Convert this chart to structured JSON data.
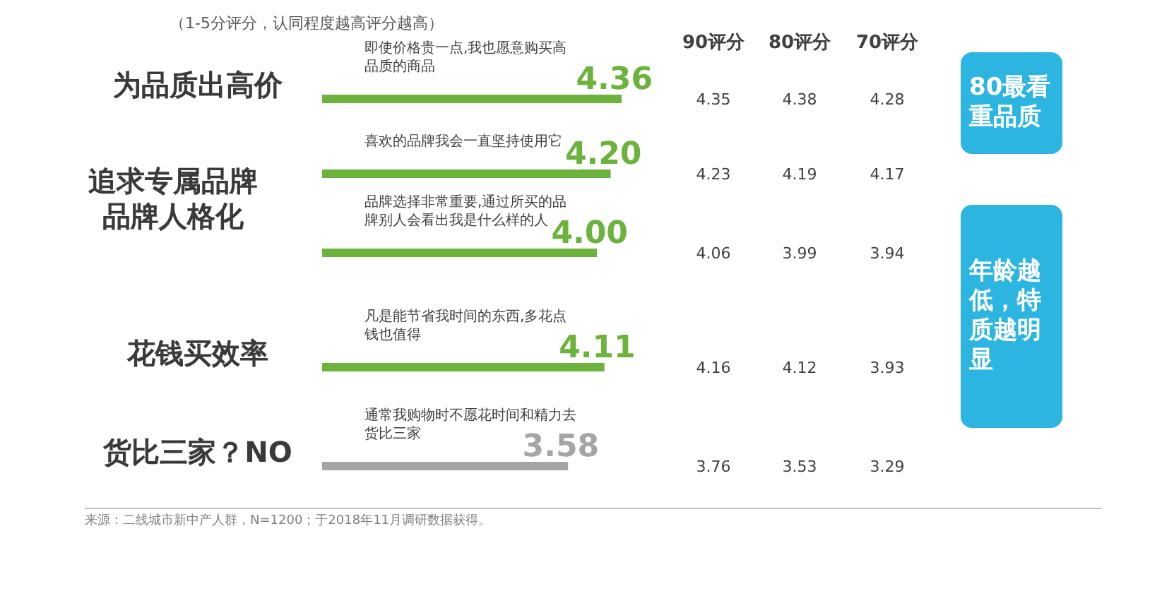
{
  "chart_data": [
    {
      "type": "bar",
      "orientation": "horizontal",
      "subtitle": "（1-5分评分，认同程度越高评分越高）",
      "categories": [
        "即使价格贵一点,我也愿意购买高品质的商品",
        "喜欢的品牌我会一直坚持使用它",
        "品牌选择非常重要,通过所买的品牌别人会看出我是什么样的人",
        "凡是能节省我时间的东西,多花点钱也值得",
        "通常我购物时不愿花时间和精力去货比三家"
      ],
      "values": [
        4.36,
        4.2,
        4.0,
        4.11,
        3.58
      ],
      "value_labels": [
        "4.36",
        "4.20",
        "4.00",
        "4.11",
        "3.58"
      ],
      "colors": [
        "#6cb33e",
        "#6cb33e",
        "#6cb33e",
        "#6cb33e",
        "#a5a5a5"
      ],
      "annotations": [
        "为品质出高价",
        "追求专属品牌品牌人格化",
        "花钱买效率",
        "货比三家？NO",
        "来源：二线城市新中产人群，N=1200；于2018年11月调研数据获得。"
      ]
    },
    {
      "type": "other",
      "annotations": [
        "90评分",
        "80评分",
        "70评分",
        "4.35",
        "4.38",
        "4.28",
        "4.23",
        "4.19",
        "4.17",
        "4.06",
        "3.99",
        "3.94",
        "4.16",
        "4.12",
        "3.93",
        "3.76",
        "3.53",
        "3.29",
        "80最看重品质",
        "年龄越低，特质越明显"
      ]
    }
  ]
}
